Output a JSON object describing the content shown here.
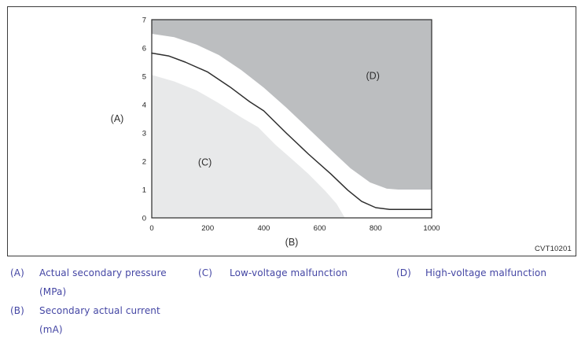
{
  "figure": {
    "code_label": "CVT10201"
  },
  "chart_data": {
    "type": "area",
    "title": "",
    "xlabel": "(B)",
    "ylabel": "(A)",
    "xlim": [
      0,
      1000
    ],
    "ylim": [
      0,
      7
    ],
    "x_ticks": [
      0,
      200,
      400,
      600,
      800,
      1000
    ],
    "y_ticks": [
      0,
      1,
      2,
      3,
      4,
      5,
      6,
      7
    ],
    "grid": false,
    "legend_position": "below-figure",
    "axis_color": "#2a2a2a",
    "tick_color": "#1f1f1f",
    "label_color": "#2e2e2e",
    "regions": [
      {
        "id": "C",
        "label": "(C)",
        "meaning": "Low-voltage malfunction",
        "fill": "#e8e9ea",
        "fill_side": "below",
        "label_x": 190,
        "label_y": 1.85,
        "boundary": [
          [
            0,
            5.05
          ],
          [
            80,
            4.82
          ],
          [
            160,
            4.5
          ],
          [
            240,
            4.05
          ],
          [
            320,
            3.55
          ],
          [
            380,
            3.2
          ],
          [
            440,
            2.6
          ],
          [
            500,
            2.08
          ],
          [
            560,
            1.55
          ],
          [
            620,
            0.95
          ],
          [
            660,
            0.5
          ],
          [
            690,
            0
          ]
        ]
      },
      {
        "id": "D",
        "label": "(D)",
        "meaning": "High-voltage malfunction",
        "fill": "#bcbec0",
        "fill_side": "above",
        "label_x": 790,
        "label_y": 4.9,
        "boundary": [
          [
            0,
            6.5
          ],
          [
            80,
            6.38
          ],
          [
            160,
            6.12
          ],
          [
            240,
            5.75
          ],
          [
            320,
            5.22
          ],
          [
            400,
            4.6
          ],
          [
            480,
            3.9
          ],
          [
            560,
            3.15
          ],
          [
            640,
            2.4
          ],
          [
            710,
            1.75
          ],
          [
            780,
            1.25
          ],
          [
            840,
            1.03
          ],
          [
            880,
            1.0
          ],
          [
            1000,
            1.0
          ]
        ]
      }
    ],
    "series": [
      {
        "name": "normal secondary pressure curve",
        "color": "#2e2e2e",
        "points": [
          [
            0,
            5.82
          ],
          [
            60,
            5.72
          ],
          [
            120,
            5.5
          ],
          [
            200,
            5.15
          ],
          [
            280,
            4.62
          ],
          [
            350,
            4.1
          ],
          [
            400,
            3.78
          ],
          [
            480,
            3.0
          ],
          [
            560,
            2.25
          ],
          [
            640,
            1.55
          ],
          [
            700,
            0.98
          ],
          [
            750,
            0.58
          ],
          [
            800,
            0.36
          ],
          [
            850,
            0.3
          ],
          [
            1000,
            0.3
          ]
        ]
      }
    ]
  },
  "legend": {
    "items": [
      {
        "key": "(A)",
        "text": "Actual secondary pressure",
        "unit": "(MPa)"
      },
      {
        "key": "(B)",
        "text": "Secondary actual current",
        "unit": "(mA)"
      },
      {
        "key": "(C)",
        "text": "Low-voltage malfunction",
        "unit": ""
      },
      {
        "key": "(D)",
        "text": "High-voltage malfunction",
        "unit": ""
      }
    ]
  }
}
